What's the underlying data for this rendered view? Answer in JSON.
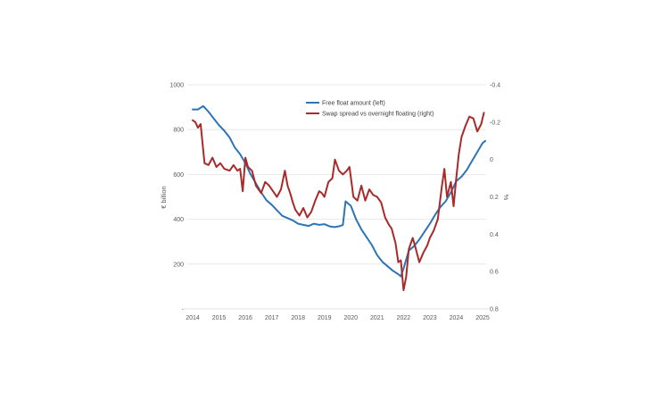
{
  "chart_data": {
    "type": "line",
    "title": "",
    "xlabel": "",
    "ylabel_left": "€ billion",
    "ylabel_right": "%",
    "x_ticks": [
      "2014",
      "2015",
      "2016",
      "2017",
      "2018",
      "2019",
      "2020",
      "2021",
      "2022",
      "2023",
      "2024",
      "2025"
    ],
    "x_range": [
      2014,
      2025
    ],
    "y_left": {
      "ticks": [
        {
          "value": 0,
          "label": "-"
        },
        {
          "value": 200,
          "label": "200"
        },
        {
          "value": 400,
          "label": "400"
        },
        {
          "value": 600,
          "label": "600"
        },
        {
          "value": 800,
          "label": "800"
        },
        {
          "value": 1000,
          "label": "1000"
        }
      ],
      "range": [
        0,
        1000
      ]
    },
    "y_right": {
      "inverted": true,
      "ticks": [
        {
          "value": -0.4,
          "label": "-0.4"
        },
        {
          "value": -0.2,
          "label": "-0.2"
        },
        {
          "value": 0,
          "label": "0"
        },
        {
          "value": 0.2,
          "label": "0.2"
        },
        {
          "value": 0.4,
          "label": "0.4"
        },
        {
          "value": 0.6,
          "label": "0.6"
        },
        {
          "value": 0.8,
          "label": "0.8"
        }
      ],
      "range": [
        -0.4,
        0.8
      ]
    },
    "gridlines": "horizontal",
    "legend_position": "top-center",
    "series": [
      {
        "name": "Free float amount (left)",
        "axis": "left",
        "color": "#2e75b6",
        "x": [
          2014.0,
          2014.2,
          2014.4,
          2014.6,
          2014.8,
          2015.0,
          2015.2,
          2015.4,
          2015.6,
          2015.8,
          2016.0,
          2016.2,
          2016.4,
          2016.6,
          2016.8,
          2017.0,
          2017.2,
          2017.4,
          2017.6,
          2017.8,
          2018.0,
          2018.2,
          2018.4,
          2018.6,
          2018.8,
          2019.0,
          2019.2,
          2019.4,
          2019.6,
          2019.7,
          2019.8,
          2020.0,
          2020.2,
          2020.4,
          2020.6,
          2020.8,
          2021.0,
          2021.2,
          2021.4,
          2021.6,
          2021.8,
          2021.9,
          2022.0,
          2022.2,
          2022.4,
          2022.6,
          2022.8,
          2023.0,
          2023.2,
          2023.4,
          2023.6,
          2023.8,
          2024.0,
          2024.2,
          2024.4,
          2024.6,
          2024.8,
          2025.0,
          2025.1
        ],
        "values": [
          890,
          890,
          905,
          880,
          850,
          820,
          795,
          765,
          720,
          690,
          650,
          600,
          560,
          520,
          485,
          465,
          440,
          415,
          405,
          395,
          380,
          375,
          370,
          380,
          375,
          378,
          368,
          365,
          370,
          375,
          480,
          460,
          400,
          355,
          320,
          285,
          240,
          210,
          190,
          170,
          155,
          145,
          180,
          260,
          280,
          310,
          345,
          380,
          420,
          455,
          480,
          520,
          570,
          590,
          620,
          660,
          700,
          740,
          750
        ]
      },
      {
        "name": "Swap spread vs overnight floating (right)",
        "axis": "right",
        "color": "#a82a2a",
        "x": [
          2014.0,
          2014.1,
          2014.2,
          2014.3,
          2014.45,
          2014.6,
          2014.75,
          2014.9,
          2015.05,
          2015.2,
          2015.4,
          2015.55,
          2015.7,
          2015.8,
          2015.9,
          2016.0,
          2016.1,
          2016.25,
          2016.4,
          2016.6,
          2016.75,
          2016.9,
          2017.05,
          2017.2,
          2017.35,
          2017.5,
          2017.6,
          2017.7,
          2017.8,
          2017.9,
          2018.05,
          2018.2,
          2018.35,
          2018.5,
          2018.65,
          2018.8,
          2018.9,
          2019.0,
          2019.15,
          2019.3,
          2019.4,
          2019.55,
          2019.7,
          2019.85,
          2019.95,
          2020.1,
          2020.25,
          2020.4,
          2020.55,
          2020.7,
          2020.85,
          2021.0,
          2021.15,
          2021.3,
          2021.45,
          2021.55,
          2021.7,
          2021.8,
          2021.9,
          2022.0,
          2022.1,
          2022.2,
          2022.35,
          2022.45,
          2022.6,
          2022.75,
          2022.9,
          2023.0,
          2023.15,
          2023.3,
          2023.45,
          2023.55,
          2023.65,
          2023.8,
          2023.9,
          2024.0,
          2024.1,
          2024.2,
          2024.35,
          2024.5,
          2024.65,
          2024.8,
          2024.95,
          2025.05
        ],
        "values": [
          -0.21,
          -0.2,
          -0.17,
          -0.19,
          0.02,
          0.03,
          -0.01,
          0.04,
          0.02,
          0.05,
          0.06,
          0.03,
          0.06,
          0.05,
          0.17,
          -0.01,
          0.04,
          0.06,
          0.14,
          0.18,
          0.12,
          0.14,
          0.17,
          0.2,
          0.16,
          0.06,
          0.14,
          0.18,
          0.23,
          0.27,
          0.3,
          0.26,
          0.31,
          0.28,
          0.22,
          0.17,
          0.18,
          0.2,
          0.12,
          0.1,
          0.0,
          0.06,
          0.08,
          0.06,
          0.04,
          0.2,
          0.22,
          0.14,
          0.22,
          0.16,
          0.19,
          0.2,
          0.23,
          0.31,
          0.35,
          0.37,
          0.45,
          0.55,
          0.54,
          0.7,
          0.63,
          0.48,
          0.42,
          0.47,
          0.55,
          0.5,
          0.46,
          0.42,
          0.38,
          0.32,
          0.15,
          0.05,
          0.2,
          0.12,
          0.25,
          0.1,
          -0.03,
          -0.12,
          -0.18,
          -0.23,
          -0.22,
          -0.15,
          -0.19,
          -0.25
        ]
      }
    ]
  }
}
